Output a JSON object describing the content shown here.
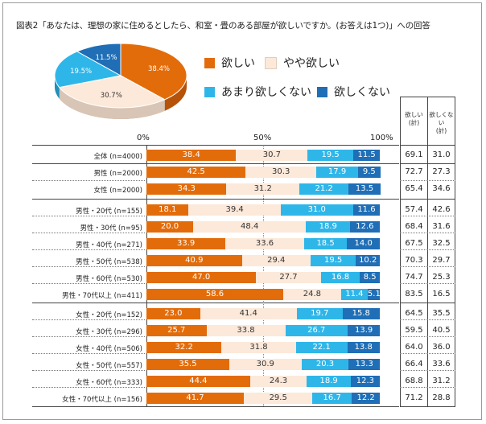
{
  "title": "図表2「あなたは、理想の家に住めるとしたら、和室・畳のある部屋が欲しいですか。(お答えは1つ)」への回答",
  "colors": {
    "want": "#E36C0A",
    "somewhat": "#FCE9DA",
    "not_much": "#2FB6E9",
    "no": "#1F6EB6"
  },
  "pie": {
    "slices": [
      {
        "name": "欲しい",
        "value": 38.4,
        "label": "38.4%"
      },
      {
        "name": "やや欲しい",
        "value": 30.7,
        "label": "30.7%"
      },
      {
        "name": "あまり欲しくない",
        "value": 19.5,
        "label": "19.5%"
      },
      {
        "name": "欲しくない",
        "value": 11.5,
        "label": "11.5%"
      }
    ]
  },
  "legend": [
    "欲しい",
    "やや欲しい",
    "あまり欲しくない",
    "欲しくない"
  ],
  "axis_ticks": [
    "0%",
    "50%",
    "100%"
  ],
  "sum_headers": [
    "欲しい\n(計)",
    "欲しくない\n(計)"
  ],
  "chart_data": {
    "type": "bar",
    "orientation": "horizontal",
    "stacked": true,
    "xlim": [
      0,
      100
    ],
    "categories": [
      "全体 (n=4000)",
      "男性 (n=2000)",
      "女性 (n=2000)",
      "男性・20代 (n=155)",
      "男性・30代 (n=95)",
      "男性・40代 (n=271)",
      "男性・50代 (n=538)",
      "男性・60代 (n=530)",
      "男性・70代以上 (n=411)",
      "女性・20代 (n=152)",
      "女性・30代 (n=296)",
      "女性・40代 (n=506)",
      "女性・50代 (n=557)",
      "女性・60代 (n=333)",
      "女性・70代以上 (n=156)"
    ],
    "series": [
      {
        "name": "欲しい",
        "values": [
          38.4,
          42.5,
          34.3,
          18.1,
          20.0,
          33.9,
          40.9,
          47.0,
          58.6,
          23.0,
          25.7,
          32.2,
          35.5,
          44.4,
          41.7
        ]
      },
      {
        "name": "やや欲しい",
        "values": [
          30.7,
          30.3,
          31.2,
          39.4,
          48.4,
          33.6,
          29.4,
          27.7,
          24.8,
          41.4,
          33.8,
          31.8,
          30.9,
          24.3,
          29.5
        ]
      },
      {
        "name": "あまり欲しくない",
        "values": [
          19.5,
          17.9,
          21.2,
          31.0,
          18.9,
          18.5,
          19.5,
          16.8,
          11.4,
          19.7,
          26.7,
          22.1,
          20.3,
          18.9,
          16.7
        ]
      },
      {
        "name": "欲しくない",
        "values": [
          11.5,
          9.5,
          13.5,
          11.6,
          12.6,
          14.0,
          10.2,
          8.5,
          5.1,
          15.8,
          13.9,
          13.8,
          13.3,
          12.3,
          12.2
        ]
      }
    ],
    "totals": {
      "want_total": [
        69.1,
        72.7,
        65.4,
        57.4,
        68.4,
        67.5,
        70.3,
        74.7,
        83.5,
        64.5,
        59.5,
        64.0,
        66.4,
        68.8,
        71.2
      ],
      "not_want_total": [
        31.0,
        27.3,
        34.6,
        42.6,
        31.6,
        32.5,
        29.7,
        25.3,
        16.5,
        35.5,
        40.5,
        36.0,
        33.6,
        31.2,
        28.8
      ]
    }
  }
}
